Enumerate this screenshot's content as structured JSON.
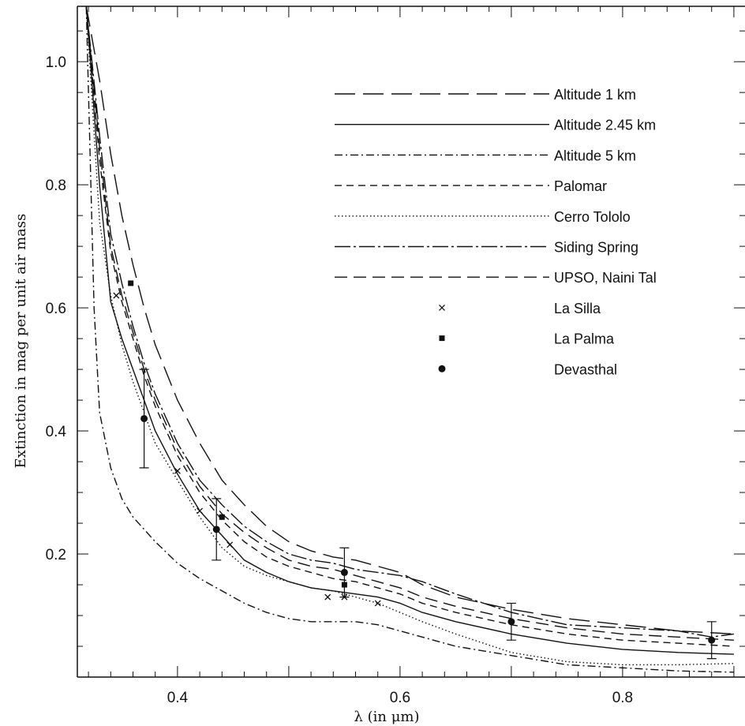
{
  "chart_data": {
    "type": "line",
    "title": "",
    "xlabel": "λ  (in μm)",
    "ylabel": "Extinction in mag per unit air mass",
    "xlim": [
      0.31,
      0.91
    ],
    "ylim": [
      0.0,
      1.09
    ],
    "x_ticks": [
      "0.4",
      "0.6",
      "0.8"
    ],
    "y_ticks": [
      "0.2",
      "0.4",
      "0.6",
      "0.8",
      "1.0"
    ],
    "grid": false,
    "legend_position": "top-right",
    "series": [
      {
        "name": "Altitude 1 km",
        "style": "long-dash",
        "x": [
          0.318,
          0.33,
          0.34,
          0.35,
          0.36,
          0.37,
          0.38,
          0.4,
          0.42,
          0.44,
          0.46,
          0.48,
          0.5,
          0.52,
          0.54,
          0.56,
          0.58,
          0.6,
          0.62,
          0.65,
          0.7,
          0.75,
          0.8,
          0.85,
          0.9
        ],
        "y": [
          1.09,
          0.97,
          0.85,
          0.75,
          0.67,
          0.6,
          0.54,
          0.45,
          0.38,
          0.32,
          0.28,
          0.245,
          0.22,
          0.205,
          0.195,
          0.19,
          0.18,
          0.17,
          0.15,
          0.13,
          0.11,
          0.095,
          0.085,
          0.075,
          0.07
        ]
      },
      {
        "name": "Altitude 2.45 km",
        "style": "solid",
        "x": [
          0.318,
          0.33,
          0.34,
          0.35,
          0.36,
          0.37,
          0.38,
          0.4,
          0.42,
          0.44,
          0.46,
          0.48,
          0.5,
          0.52,
          0.54,
          0.56,
          0.58,
          0.6,
          0.62,
          0.65,
          0.7,
          0.75,
          0.8,
          0.85,
          0.9
        ],
        "y": [
          1.09,
          0.8,
          0.61,
          0.55,
          0.5,
          0.45,
          0.4,
          0.33,
          0.27,
          0.23,
          0.19,
          0.17,
          0.155,
          0.145,
          0.14,
          0.135,
          0.13,
          0.12,
          0.105,
          0.09,
          0.07,
          0.055,
          0.045,
          0.04,
          0.037
        ]
      },
      {
        "name": "Altitude 5 km",
        "style": "dash-dot",
        "x": [
          0.318,
          0.325,
          0.33,
          0.34,
          0.35,
          0.36,
          0.38,
          0.4,
          0.42,
          0.44,
          0.46,
          0.48,
          0.5,
          0.52,
          0.54,
          0.56,
          0.58,
          0.6,
          0.62,
          0.65,
          0.7,
          0.75,
          0.8,
          0.85,
          0.9
        ],
        "y": [
          1.09,
          0.6,
          0.43,
          0.34,
          0.29,
          0.26,
          0.22,
          0.185,
          0.16,
          0.14,
          0.12,
          0.105,
          0.095,
          0.09,
          0.09,
          0.09,
          0.085,
          0.075,
          0.065,
          0.05,
          0.035,
          0.02,
          0.015,
          0.01,
          0.008
        ]
      },
      {
        "name": "Palomar",
        "style": "short-dash",
        "x": [
          0.318,
          0.33,
          0.34,
          0.35,
          0.36,
          0.37,
          0.38,
          0.4,
          0.42,
          0.44,
          0.46,
          0.48,
          0.5,
          0.52,
          0.54,
          0.56,
          0.58,
          0.6,
          0.62,
          0.65,
          0.7,
          0.75,
          0.8,
          0.85,
          0.9
        ],
        "y": [
          1.09,
          0.84,
          0.69,
          0.61,
          0.55,
          0.49,
          0.44,
          0.36,
          0.3,
          0.255,
          0.22,
          0.195,
          0.18,
          0.17,
          0.16,
          0.155,
          0.145,
          0.135,
          0.12,
          0.105,
          0.085,
          0.07,
          0.06,
          0.055,
          0.05
        ]
      },
      {
        "name": "Cerro Tololo",
        "style": "dotted",
        "x": [
          0.318,
          0.33,
          0.34,
          0.35,
          0.36,
          0.37,
          0.38,
          0.4,
          0.42,
          0.44,
          0.46,
          0.48,
          0.5,
          0.52,
          0.54,
          0.56,
          0.58,
          0.6,
          0.62,
          0.65,
          0.7,
          0.75,
          0.8,
          0.85,
          0.9
        ],
        "y": [
          1.09,
          0.74,
          0.62,
          0.54,
          0.48,
          0.43,
          0.38,
          0.32,
          0.26,
          0.21,
          0.18,
          0.165,
          0.155,
          0.145,
          0.14,
          0.13,
          0.12,
          0.105,
          0.09,
          0.07,
          0.04,
          0.025,
          0.02,
          0.02,
          0.022
        ]
      },
      {
        "name": "Siding Spring",
        "style": "long-dash-dot",
        "x": [
          0.318,
          0.33,
          0.34,
          0.35,
          0.36,
          0.37,
          0.38,
          0.4,
          0.42,
          0.44,
          0.46,
          0.48,
          0.5,
          0.52,
          0.54,
          0.56,
          0.58,
          0.6,
          0.62,
          0.65,
          0.7,
          0.75,
          0.8,
          0.85,
          0.88,
          0.9
        ],
        "y": [
          1.09,
          0.88,
          0.72,
          0.64,
          0.57,
          0.51,
          0.46,
          0.38,
          0.32,
          0.28,
          0.245,
          0.22,
          0.2,
          0.19,
          0.185,
          0.175,
          0.17,
          0.165,
          0.155,
          0.135,
          0.105,
          0.085,
          0.08,
          0.075,
          0.065,
          0.07
        ]
      },
      {
        "name": "UPSO, Naini Tal",
        "style": "medium-dash",
        "x": [
          0.318,
          0.33,
          0.34,
          0.35,
          0.36,
          0.37,
          0.38,
          0.4,
          0.42,
          0.44,
          0.46,
          0.48,
          0.5,
          0.52,
          0.54,
          0.56,
          0.58,
          0.6,
          0.62,
          0.65,
          0.7,
          0.75,
          0.8,
          0.85,
          0.9
        ],
        "y": [
          1.09,
          0.86,
          0.7,
          0.62,
          0.56,
          0.5,
          0.45,
          0.37,
          0.31,
          0.265,
          0.235,
          0.21,
          0.19,
          0.18,
          0.175,
          0.165,
          0.155,
          0.145,
          0.13,
          0.115,
          0.095,
          0.08,
          0.07,
          0.065,
          0.06
        ]
      }
    ],
    "points": [
      {
        "name": "La Silla",
        "marker": "x",
        "x": [
          0.345,
          0.4,
          0.42,
          0.447,
          0.535,
          0.55,
          0.58
        ],
        "y": [
          0.62,
          0.335,
          0.27,
          0.215,
          0.13,
          0.13,
          0.12
        ]
      },
      {
        "name": "La Palma",
        "marker": "square",
        "x": [
          0.358,
          0.44,
          0.55
        ],
        "y": [
          0.64,
          0.26,
          0.15
        ]
      },
      {
        "name": "Devasthal",
        "marker": "circle",
        "x": [
          0.37,
          0.435,
          0.55,
          0.7,
          0.88
        ],
        "y": [
          0.42,
          0.24,
          0.17,
          0.09,
          0.06
        ],
        "error": [
          0.08,
          0.05,
          0.04,
          0.03,
          0.03
        ]
      }
    ]
  }
}
